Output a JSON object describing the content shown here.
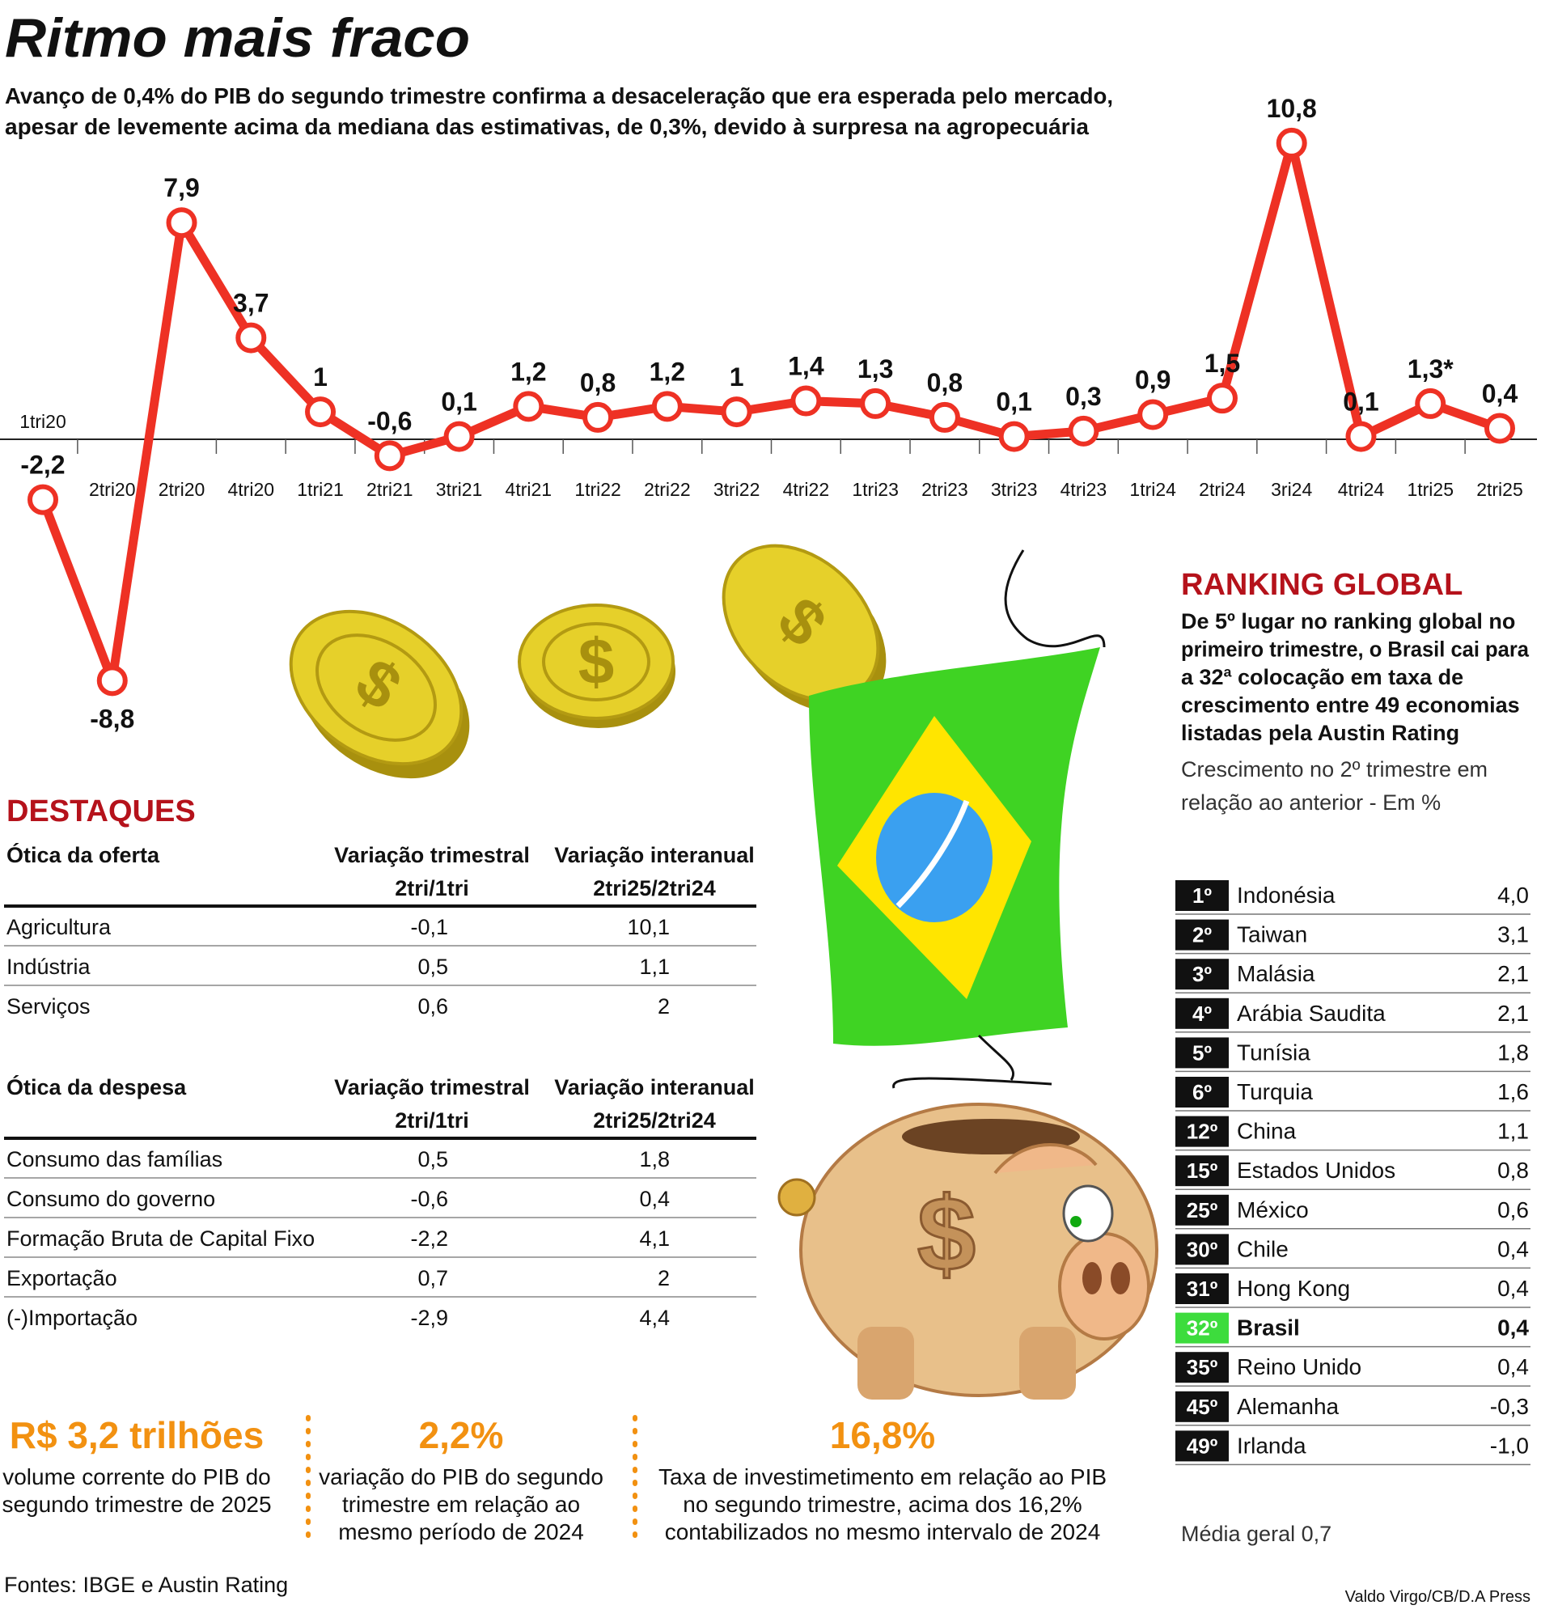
{
  "header": {
    "title": "Ritmo mais fraco",
    "subtitle": [
      "Avanço de 0,4% do PIB do segundo trimestre confirma a desaceleração que era esperada pelo mercado,",
      "apesar de levemente acima da mediana das estimativas, de 0,3%, devido à surpresa na agropecuária"
    ]
  },
  "chart_data": {
    "type": "line",
    "categories": [
      "1tri20",
      "2tri20",
      "2tri20",
      "4tri20",
      "1tri21",
      "2tri21",
      "3tri21",
      "4tri21",
      "1tri22",
      "2tri22",
      "3tri22",
      "4tri22",
      "1tri23",
      "2tri23",
      "3tri23",
      "4tri23",
      "1tri24",
      "2tri24",
      "3ri24",
      "4tri24",
      "1tri25",
      "2tri25"
    ],
    "values": [
      -2.2,
      -8.8,
      7.9,
      3.7,
      1,
      -0.6,
      0.1,
      1.2,
      0.8,
      1.2,
      1,
      1.4,
      1.3,
      0.8,
      0.1,
      0.3,
      0.9,
      1.5,
      10.8,
      0.1,
      1.3,
      0.4
    ],
    "value_labels": [
      "-2,2",
      "-8,8",
      "7,9",
      "3,7",
      "1",
      "-0,6",
      "0,1",
      "1,2",
      "0,8",
      "1,2",
      "1",
      "1,4",
      "1,3",
      "0,8",
      "0,1",
      "0,3",
      "0,9",
      "1,5",
      "10,8",
      "0,1",
      "1,3*",
      "0,4"
    ],
    "color": "#ee3124",
    "ylim": [
      -10,
      11
    ]
  },
  "destaques": {
    "title": "DESTAQUES",
    "tables": [
      {
        "headers": [
          [
            "Ótica da oferta"
          ],
          [
            "Variação trimestral",
            "2tri/1tri"
          ],
          [
            "Variação interanual",
            "2tri25/2tri24"
          ]
        ],
        "rows": [
          [
            "Agricultura",
            "-0,1",
            "10,1"
          ],
          [
            "Indústria",
            "0,5",
            "1,1"
          ],
          [
            "Serviços",
            "0,6",
            "2"
          ]
        ]
      },
      {
        "headers": [
          [
            "Ótica da despesa"
          ],
          [
            "Variação trimestral",
            "2tri/1tri"
          ],
          [
            "Variação interanual",
            "2tri25/2tri24"
          ]
        ],
        "rows": [
          [
            "Consumo das famílias",
            "0,5",
            "1,8"
          ],
          [
            "Consumo do governo",
            "-0,6",
            "0,4"
          ],
          [
            "Formação Bruta de Capital Fixo",
            "-2,2",
            "4,1"
          ],
          [
            "Exportação",
            "0,7",
            "2"
          ],
          [
            "(-)Importação",
            "-2,9",
            "4,4"
          ]
        ]
      }
    ]
  },
  "stats": [
    {
      "value": "R$ 3,2 trilhões",
      "text": [
        "volume corrente do PIB do",
        "segundo trimestre de 2025"
      ]
    },
    {
      "value": "2,2%",
      "text": [
        "variação do PIB do segundo",
        "trimestre em relação ao",
        "mesmo período de 2024"
      ]
    },
    {
      "value": "16,8%",
      "text": [
        "Taxa de investimetimento em relação ao PIB",
        "no segundo trimestre, acima dos 16,2%",
        "contabilizados no mesmo intervalo de 2024"
      ]
    }
  ],
  "ranking": {
    "title": "RANKING GLOBAL",
    "description": [
      "De 5º lugar no ranking global no",
      "primeiro trimestre, o Brasil cai para",
      "a 32ª colocação em taxa de",
      "crescimento entre 49 economias",
      "listadas pela Austin Rating"
    ],
    "note": [
      "Crescimento no 2º trimestre em",
      "relação ao anterior - Em %"
    ],
    "rows": [
      [
        "1º",
        "Indonésia",
        "4,0"
      ],
      [
        "2º",
        "Taiwan",
        "3,1"
      ],
      [
        "3º",
        "Malásia",
        "2,1"
      ],
      [
        "4º",
        "Arábia Saudita",
        "2,1"
      ],
      [
        "5º",
        "Tunísia",
        "1,8"
      ],
      [
        "6º",
        "Turquia",
        "1,6"
      ],
      [
        "12º",
        "China",
        "1,1"
      ],
      [
        "15º",
        "Estados Unidos",
        "0,8"
      ],
      [
        "25º",
        "México",
        "0,6"
      ],
      [
        "30º",
        "Chile",
        "0,4"
      ],
      [
        "31º",
        "Hong Kong",
        "0,4"
      ],
      [
        "32º",
        "Brasil",
        "0,4"
      ],
      [
        "35º",
        "Reino Unido",
        "0,4"
      ],
      [
        "45º",
        "Alemanha",
        "-0,3"
      ],
      [
        "49º",
        "Irlanda",
        "-1,0"
      ]
    ],
    "highlight_row": 11,
    "highlight_color": "#3ddc3d",
    "average": "Média geral 0,7"
  },
  "footer": {
    "sources": "Fontes: IBGE e Austin Rating",
    "credit": "Valdo Virgo/CB/D.A Press"
  }
}
